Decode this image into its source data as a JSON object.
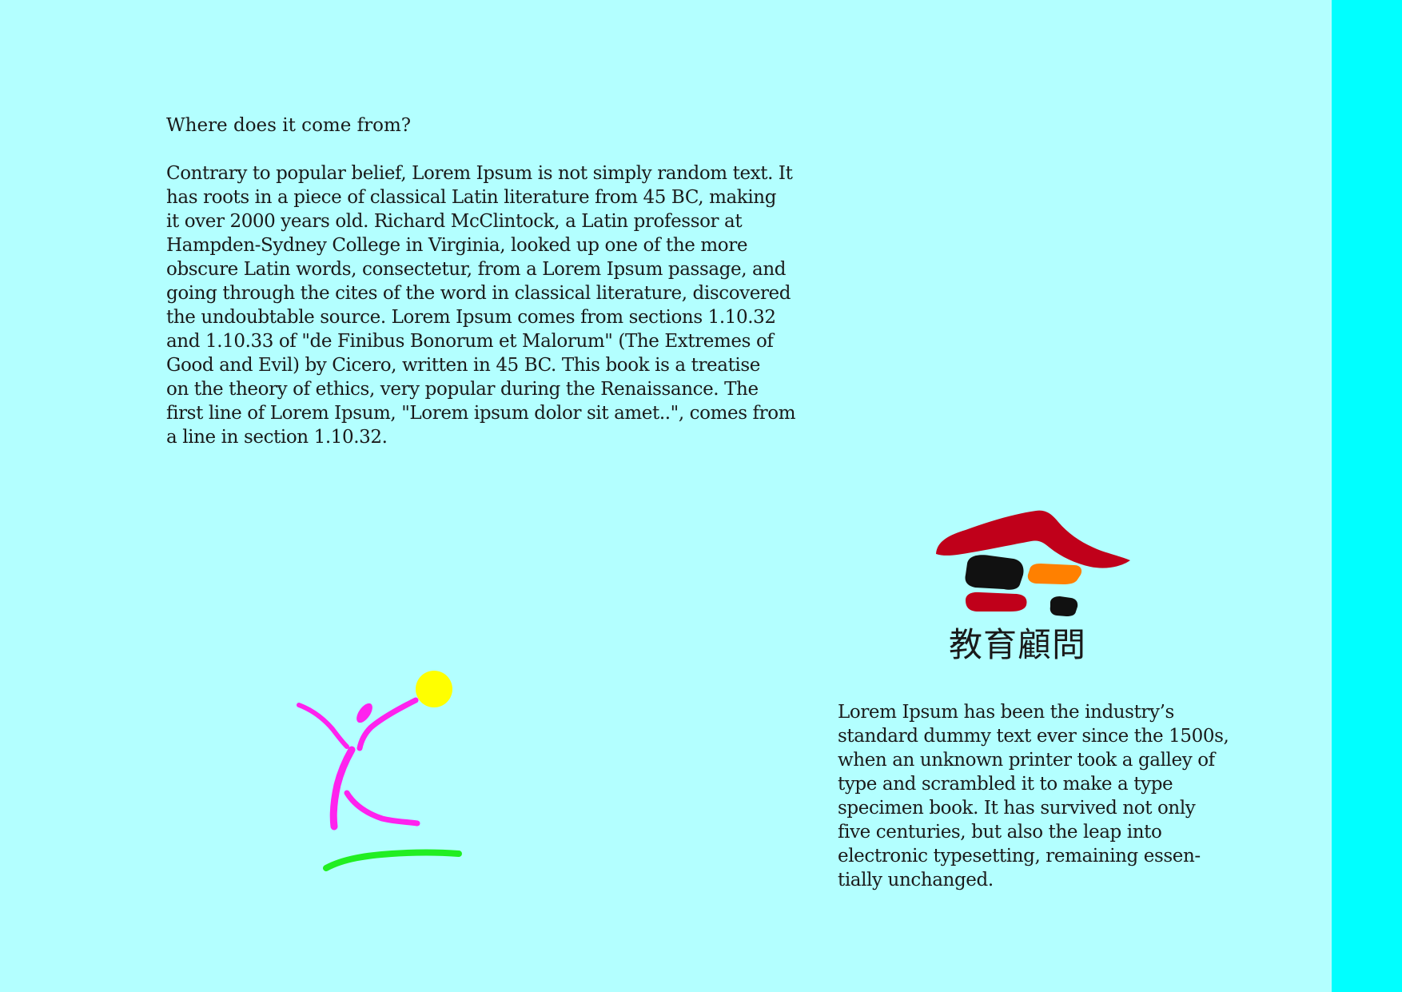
{
  "article": {
    "heading": "Where does it come from?",
    "lines": [
      "Contrary to popular belief, Lorem Ipsum is not simply random text. It",
      "has roots in a piece of classical Latin literature from 45 BC, making",
      "it over 2000 years old. Richard McClintock, a Latin professor at",
      "Hampden-Sydney College in Virginia, looked up one of the more",
      "obscure Latin words, consectetur, from a Lorem Ipsum passage, and",
      "going through the cites of the word in classical literature, discovered",
      "the undoubtable source. Lorem Ipsum comes from sections 1.10.32",
      "and 1.10.33 of \"de Finibus Bonorum et Malorum\" (The Extremes of",
      "Good and Evil) by Cicero, written in 45 BC. This book is a treatise",
      "on the theory of ethics, very popular during the Renaissance. The",
      "first line of Lorem Ipsum, \"Lorem ipsum dolor sit amet..\", comes from",
      "a line in section 1.10.32."
    ]
  },
  "logo": {
    "text": "教育顧問",
    "roof_color": "#c0001a",
    "dark_color": "#111111",
    "accent_color": "#ff8000"
  },
  "sidebar_text": {
    "lines": [
      "Lorem Ipsum has been the industry’s",
      "standard dummy text ever since the 1500s,",
      "when an unknown printer took a galley of",
      "type and scrambled it to make a type",
      "specimen book. It has survived not only",
      "five centuries, but also the leap into",
      "electronic typesetting, remaining essen-",
      "tially unchanged."
    ]
  },
  "figure": {
    "figure_color": "#ff22ee",
    "sun_color": "#ffff00",
    "ground_color": "#22ee22"
  },
  "colors": {
    "page_background": "#b3ffff",
    "side_band": "#00ffff"
  }
}
